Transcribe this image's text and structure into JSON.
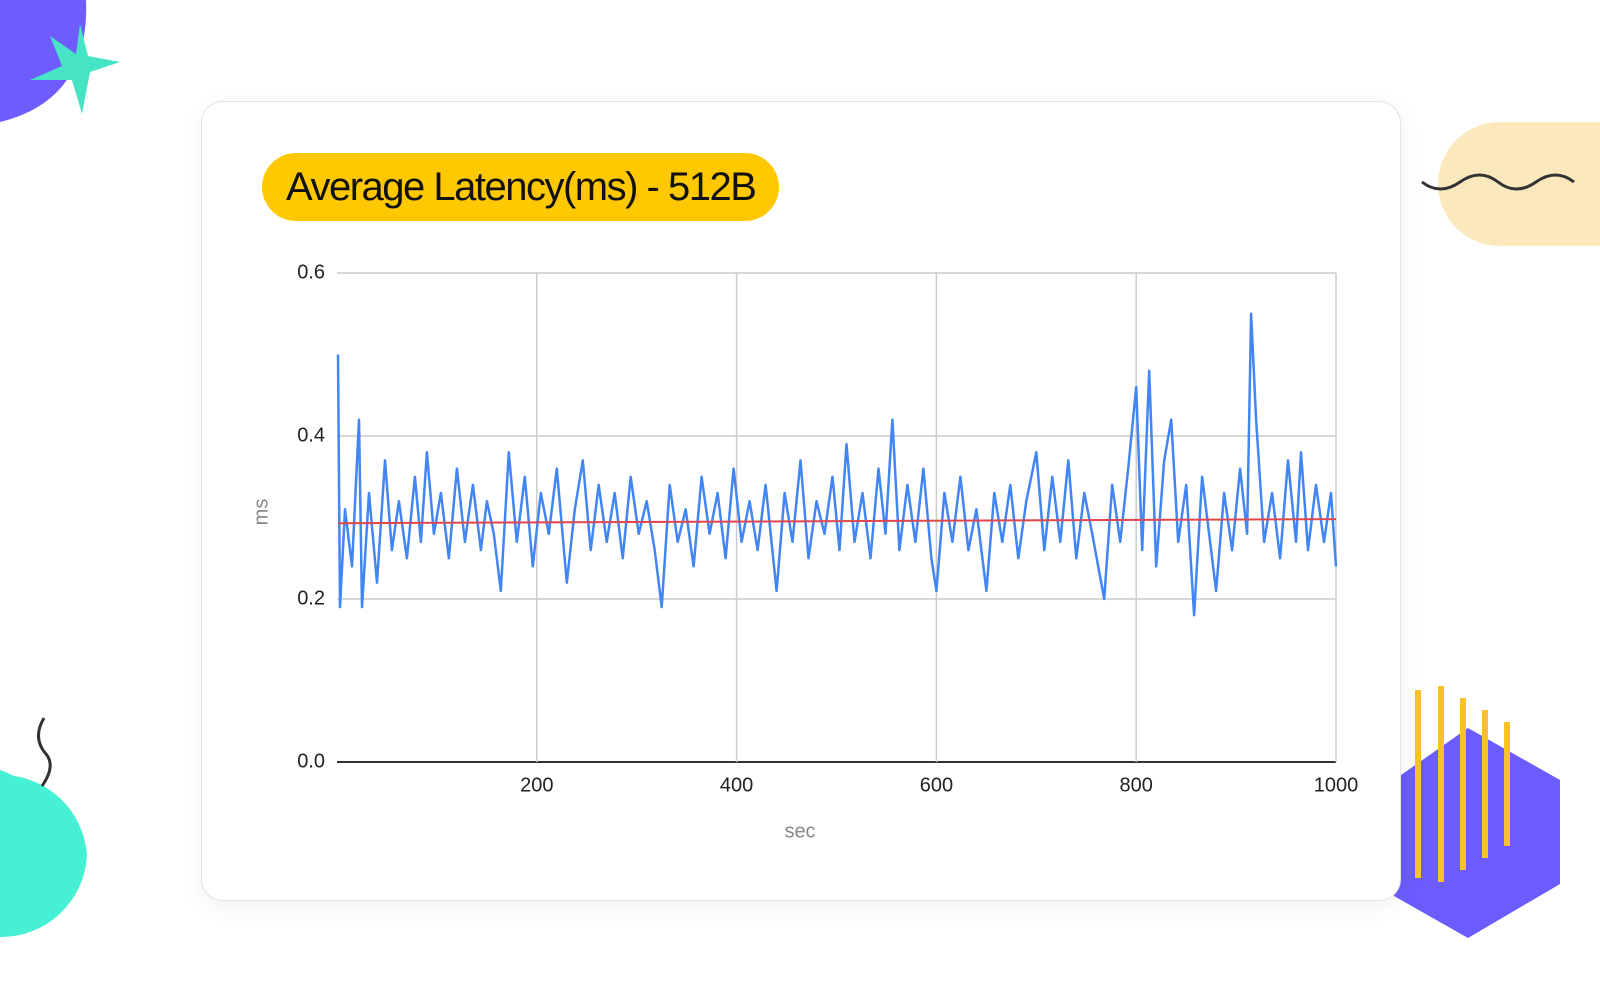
{
  "chart_data": {
    "type": "line",
    "title": "Average Latency(ms) - 512B",
    "xlabel": "sec",
    "ylabel": "ms",
    "xlim": [
      0,
      1000
    ],
    "xticks": [
      200,
      400,
      600,
      800,
      1000
    ],
    "ylim": [
      0,
      0.6
    ],
    "yticks": [
      {
        "value": 0,
        "label": "0.0"
      },
      0.2,
      0.4,
      0.6
    ],
    "grid": true,
    "series": [
      {
        "color": "#4285f4",
        "x": [
          1,
          3,
          8,
          15,
          22,
          25,
          32,
          40,
          48,
          55,
          62,
          70,
          78,
          84,
          90,
          97,
          104,
          112,
          120,
          128,
          136,
          144,
          150,
          157,
          164,
          172,
          180,
          188,
          196,
          204,
          212,
          220,
          230,
          238,
          246,
          254,
          262,
          270,
          278,
          286,
          294,
          302,
          310,
          318,
          325,
          333,
          341,
          349,
          357,
          365,
          373,
          381,
          389,
          397,
          405,
          413,
          421,
          429,
          440,
          448,
          456,
          464,
          472,
          480,
          488,
          496,
          503,
          510,
          518,
          526,
          534,
          542,
          549,
          556,
          563,
          571,
          579,
          587,
          595,
          600,
          608,
          616,
          624,
          632,
          640,
          650,
          658,
          666,
          674,
          682,
          690,
          700,
          708,
          716,
          724,
          732,
          740,
          748,
          756,
          768,
          776,
          784,
          792,
          800,
          806,
          813,
          820,
          828,
          835,
          842,
          850,
          858,
          866,
          874,
          880,
          888,
          896,
          904,
          911,
          915,
          920,
          928,
          936,
          944,
          952,
          960,
          965,
          972,
          980,
          988,
          995,
          1000
        ],
        "values": [
          0.5,
          0.19,
          0.31,
          0.24,
          0.42,
          0.19,
          0.33,
          0.22,
          0.37,
          0.26,
          0.32,
          0.25,
          0.35,
          0.27,
          0.38,
          0.28,
          0.33,
          0.25,
          0.36,
          0.27,
          0.34,
          0.26,
          0.32,
          0.28,
          0.21,
          0.38,
          0.27,
          0.35,
          0.24,
          0.33,
          0.28,
          0.36,
          0.22,
          0.31,
          0.37,
          0.26,
          0.34,
          0.27,
          0.33,
          0.25,
          0.35,
          0.28,
          0.32,
          0.26,
          0.19,
          0.34,
          0.27,
          0.31,
          0.24,
          0.35,
          0.28,
          0.33,
          0.25,
          0.36,
          0.27,
          0.32,
          0.26,
          0.34,
          0.21,
          0.33,
          0.27,
          0.37,
          0.25,
          0.32,
          0.28,
          0.35,
          0.26,
          0.39,
          0.27,
          0.33,
          0.25,
          0.36,
          0.28,
          0.42,
          0.26,
          0.34,
          0.27,
          0.36,
          0.25,
          0.21,
          0.33,
          0.27,
          0.35,
          0.26,
          0.31,
          0.21,
          0.33,
          0.27,
          0.34,
          0.25,
          0.32,
          0.38,
          0.26,
          0.35,
          0.27,
          0.37,
          0.25,
          0.33,
          0.28,
          0.2,
          0.34,
          0.27,
          0.36,
          0.46,
          0.26,
          0.48,
          0.24,
          0.37,
          0.42,
          0.27,
          0.34,
          0.18,
          0.35,
          0.27,
          0.21,
          0.33,
          0.26,
          0.36,
          0.28,
          0.55,
          0.42,
          0.27,
          0.33,
          0.25,
          0.37,
          0.27,
          0.38,
          0.26,
          0.34,
          0.27,
          0.33,
          0.24
        ]
      },
      {
        "color": "#e0474c",
        "x": [
          1,
          1000
        ],
        "values": [
          0.293,
          0.298
        ]
      }
    ]
  }
}
